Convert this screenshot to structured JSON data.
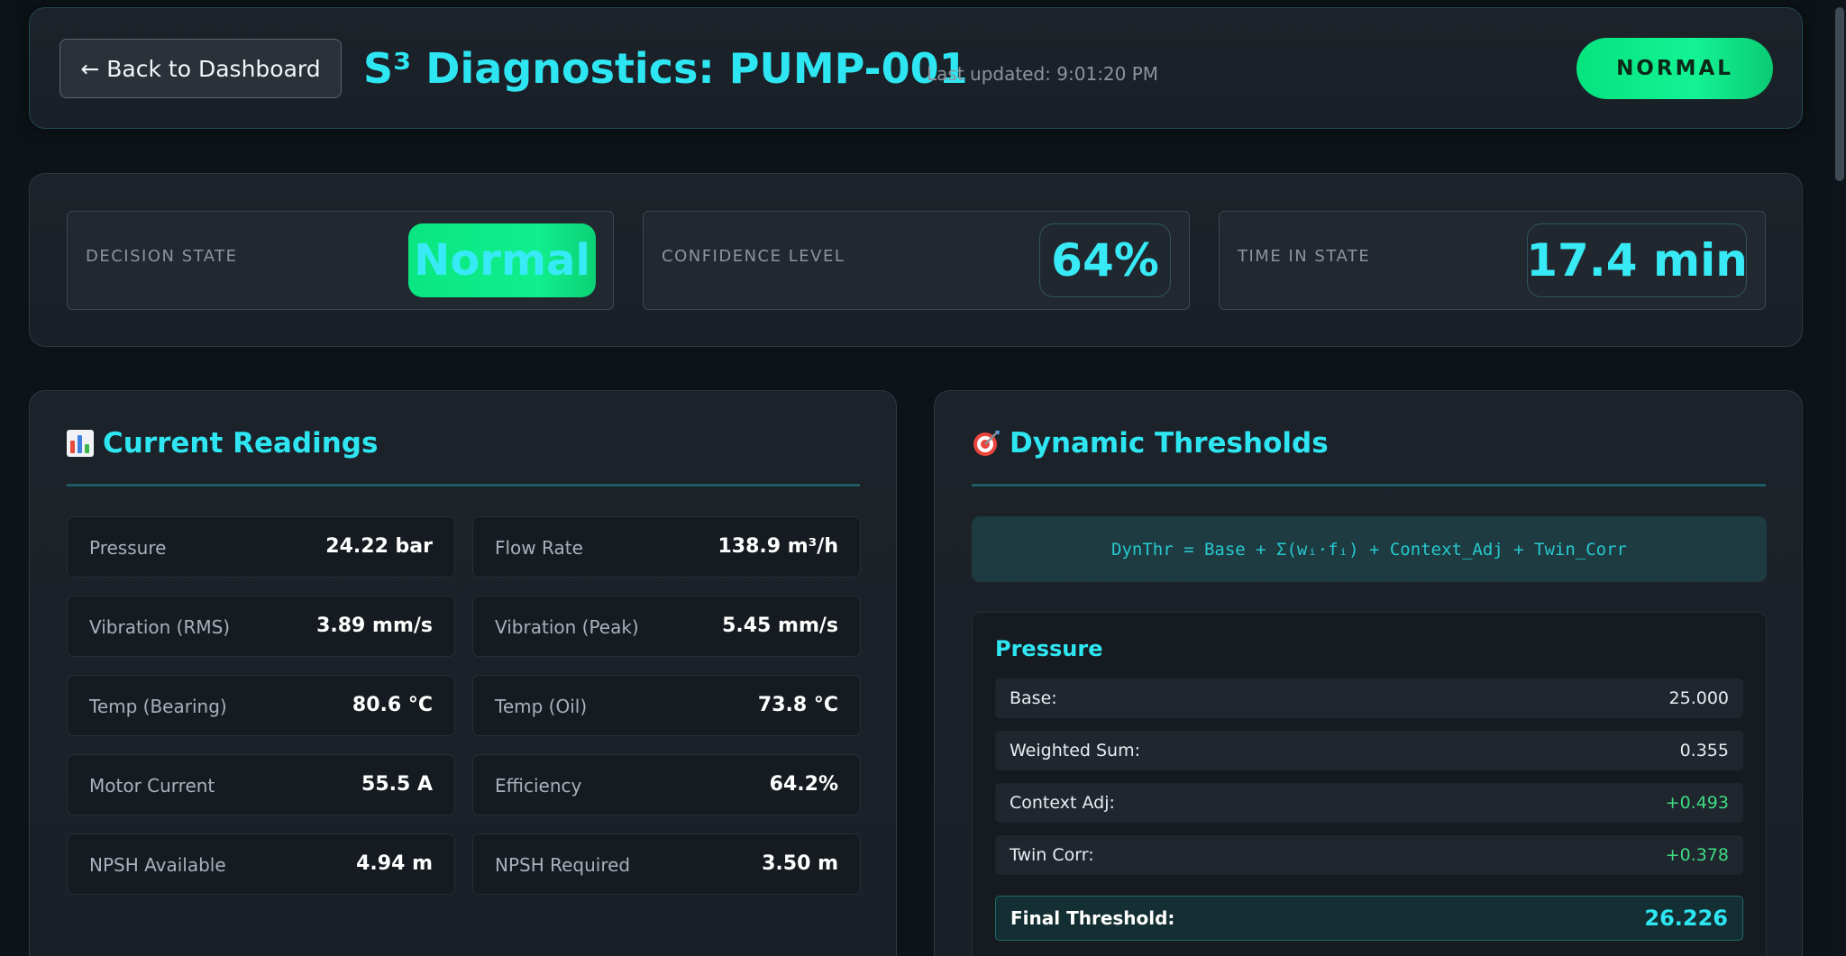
{
  "header": {
    "back_label": "← Back to Dashboard",
    "title": "S³ Diagnostics: PUMP-001",
    "last_updated": "Last updated: 9:01:20 PM",
    "status": "NORMAL"
  },
  "metrics": [
    {
      "label": "Decision State",
      "value": "Normal"
    },
    {
      "label": "Confidence Level",
      "value": "64%"
    },
    {
      "label": "Time in State",
      "value": "17.4 min"
    }
  ],
  "readings_panel": {
    "title": "Current Readings",
    "icon": "bar-chart-icon",
    "items": [
      {
        "label": "Pressure",
        "value": "24.22 bar"
      },
      {
        "label": "Flow Rate",
        "value": "138.9 m³/h"
      },
      {
        "label": "Vibration (RMS)",
        "value": "3.89 mm/s"
      },
      {
        "label": "Vibration (Peak)",
        "value": "5.45 mm/s"
      },
      {
        "label": "Temp (Bearing)",
        "value": "80.6 °C"
      },
      {
        "label": "Temp (Oil)",
        "value": "73.8 °C"
      },
      {
        "label": "Motor Current",
        "value": "55.5 A"
      },
      {
        "label": "Efficiency",
        "value": "64.2%"
      },
      {
        "label": "NPSH Available",
        "value": "4.94 m"
      },
      {
        "label": "NPSH Required",
        "value": "3.50 m"
      }
    ]
  },
  "thresholds_panel": {
    "title": "Dynamic Thresholds",
    "icon": "target-icon",
    "formula": "DynThr = Base + Σ(wᵢ·fᵢ) + Context_Adj + Twin_Corr",
    "pressure": {
      "title": "Pressure",
      "rows": [
        {
          "label": "Base:",
          "value": "25.000"
        },
        {
          "label": "Weighted Sum:",
          "value": "0.355"
        },
        {
          "label": "Context Adj:",
          "value": "+0.493"
        },
        {
          "label": "Twin Corr:",
          "value": "+0.378"
        }
      ],
      "final_label": "Final Threshold:",
      "final_value": "26.226"
    }
  },
  "colors": {
    "accent": "#2ee6f2",
    "normal": "#10ee8d",
    "positive": "#3ddc84"
  }
}
